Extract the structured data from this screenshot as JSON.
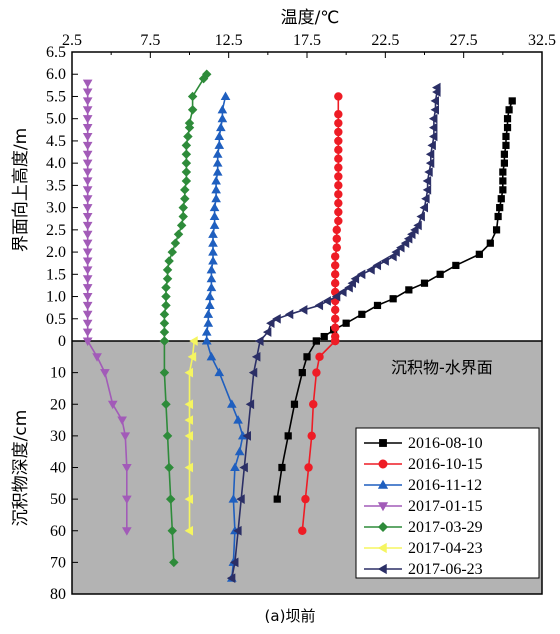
{
  "chart_data": {
    "type": "line",
    "xlabel": "温度/℃",
    "ylabel_upper": "界面向上高度/m",
    "ylabel_lower": "沉积物深度/cm",
    "annotation": "沉积物-水界面",
    "caption": "(a)坝前",
    "x_axis": {
      "position": "top",
      "range": [
        2.5,
        32.5
      ],
      "ticks": [
        "2.5",
        "7.5",
        "12.5",
        "17.5",
        "22.5",
        "27.5",
        "32.5"
      ]
    },
    "upper_axis": {
      "unit": "m",
      "range": [
        0,
        6.5
      ],
      "ticks": [
        "0",
        "0.5",
        "1.0",
        "1.5",
        "2.0",
        "2.5",
        "3.0",
        "3.5",
        "4.0",
        "4.5",
        "5.0",
        "5.5",
        "6.0",
        "6.5"
      ]
    },
    "lower_axis": {
      "unit": "cm",
      "range": [
        0,
        80
      ],
      "ticks": [
        "10",
        "20",
        "30",
        "40",
        "50",
        "60",
        "70",
        "80"
      ]
    },
    "legend_position": "bottom-right",
    "series": [
      {
        "name": "2016-08-10",
        "color": "#000000",
        "marker": "square",
        "water": [
          [
            18.1,
            0
          ],
          [
            18.6,
            0.1
          ],
          [
            19.2,
            0.25
          ],
          [
            20.0,
            0.4
          ],
          [
            21.0,
            0.6
          ],
          [
            22.0,
            0.8
          ],
          [
            23.0,
            0.95
          ],
          [
            24.0,
            1.15
          ],
          [
            25.0,
            1.3
          ],
          [
            26.0,
            1.5
          ],
          [
            27.0,
            1.7
          ],
          [
            28.5,
            1.95
          ],
          [
            29.2,
            2.2
          ],
          [
            29.6,
            2.5
          ],
          [
            29.7,
            2.8
          ],
          [
            29.8,
            3.0
          ],
          [
            29.9,
            3.2
          ],
          [
            30.0,
            3.4
          ],
          [
            30.0,
            3.6
          ],
          [
            30.0,
            3.8
          ],
          [
            30.1,
            4.0
          ],
          [
            30.1,
            4.2
          ],
          [
            30.2,
            4.4
          ],
          [
            30.2,
            4.6
          ],
          [
            30.3,
            4.8
          ],
          [
            30.3,
            5.0
          ],
          [
            30.4,
            5.2
          ],
          [
            30.6,
            5.4
          ]
        ],
        "sediment": [
          [
            18.1,
            0
          ],
          [
            17.5,
            5
          ],
          [
            17.2,
            10
          ],
          [
            16.7,
            20
          ],
          [
            16.3,
            30
          ],
          [
            15.9,
            40
          ],
          [
            15.6,
            50
          ]
        ]
      },
      {
        "name": "2016-10-15",
        "color": "#ee1c25",
        "marker": "circle",
        "water": [
          [
            19.3,
            0
          ],
          [
            19.3,
            0.1
          ],
          [
            19.3,
            0.3
          ],
          [
            19.3,
            0.5
          ],
          [
            19.3,
            0.7
          ],
          [
            19.3,
            0.9
          ],
          [
            19.3,
            1.1
          ],
          [
            19.3,
            1.3
          ],
          [
            19.3,
            1.5
          ],
          [
            19.3,
            1.7
          ],
          [
            19.3,
            1.9
          ],
          [
            19.4,
            2.1
          ],
          [
            19.4,
            2.3
          ],
          [
            19.4,
            2.5
          ],
          [
            19.5,
            2.7
          ],
          [
            19.5,
            2.9
          ],
          [
            19.5,
            3.1
          ],
          [
            19.5,
            3.3
          ],
          [
            19.5,
            3.5
          ],
          [
            19.5,
            3.7
          ],
          [
            19.5,
            3.9
          ],
          [
            19.5,
            4.1
          ],
          [
            19.5,
            4.3
          ],
          [
            19.5,
            4.5
          ],
          [
            19.5,
            4.7
          ],
          [
            19.5,
            4.9
          ],
          [
            19.5,
            5.1
          ],
          [
            19.5,
            5.5
          ]
        ],
        "sediment": [
          [
            19.3,
            0
          ],
          [
            18.3,
            5
          ],
          [
            18.1,
            10
          ],
          [
            17.9,
            20
          ],
          [
            17.8,
            30
          ],
          [
            17.6,
            40
          ],
          [
            17.4,
            50
          ],
          [
            17.2,
            60
          ]
        ]
      },
      {
        "name": "2016-11-12",
        "color": "#1f5fbf",
        "marker": "triangle-up",
        "water": [
          [
            11.1,
            0
          ],
          [
            11.1,
            0.2
          ],
          [
            11.2,
            0.4
          ],
          [
            11.2,
            0.6
          ],
          [
            11.3,
            0.8
          ],
          [
            11.3,
            1.0
          ],
          [
            11.4,
            1.2
          ],
          [
            11.4,
            1.4
          ],
          [
            11.4,
            1.6
          ],
          [
            11.5,
            1.8
          ],
          [
            11.5,
            2.0
          ],
          [
            11.5,
            2.2
          ],
          [
            11.5,
            2.4
          ],
          [
            11.6,
            2.6
          ],
          [
            11.6,
            2.8
          ],
          [
            11.6,
            3.0
          ],
          [
            11.7,
            3.2
          ],
          [
            11.7,
            3.4
          ],
          [
            11.7,
            3.6
          ],
          [
            11.8,
            3.8
          ],
          [
            11.8,
            4.0
          ],
          [
            11.8,
            4.2
          ],
          [
            11.9,
            4.4
          ],
          [
            11.9,
            4.6
          ],
          [
            12.0,
            4.8
          ],
          [
            12.1,
            5.0
          ],
          [
            12.1,
            5.2
          ],
          [
            12.3,
            5.5
          ]
        ],
        "sediment": [
          [
            11.1,
            0
          ],
          [
            11.4,
            5
          ],
          [
            11.9,
            10
          ],
          [
            12.7,
            20
          ],
          [
            13.1,
            25
          ],
          [
            13.4,
            30
          ],
          [
            13.2,
            35
          ],
          [
            12.9,
            40
          ],
          [
            12.8,
            50
          ],
          [
            12.9,
            60
          ],
          [
            12.8,
            70
          ],
          [
            12.7,
            75
          ]
        ]
      },
      {
        "name": "2017-01-15",
        "color": "#a25bb8",
        "marker": "triangle-down",
        "water": [
          [
            3.5,
            0
          ],
          [
            3.5,
            0.2
          ],
          [
            3.5,
            0.4
          ],
          [
            3.5,
            0.6
          ],
          [
            3.5,
            0.8
          ],
          [
            3.5,
            1.0
          ],
          [
            3.5,
            1.2
          ],
          [
            3.5,
            1.4
          ],
          [
            3.5,
            1.6
          ],
          [
            3.5,
            1.8
          ],
          [
            3.5,
            2.0
          ],
          [
            3.5,
            2.2
          ],
          [
            3.5,
            2.4
          ],
          [
            3.5,
            2.6
          ],
          [
            3.5,
            2.8
          ],
          [
            3.5,
            3.0
          ],
          [
            3.5,
            3.2
          ],
          [
            3.5,
            3.4
          ],
          [
            3.5,
            3.6
          ],
          [
            3.5,
            3.8
          ],
          [
            3.5,
            4.0
          ],
          [
            3.5,
            4.2
          ],
          [
            3.5,
            4.4
          ],
          [
            3.5,
            4.6
          ],
          [
            3.5,
            4.8
          ],
          [
            3.5,
            5.0
          ],
          [
            3.5,
            5.2
          ],
          [
            3.5,
            5.4
          ],
          [
            3.5,
            5.6
          ],
          [
            3.5,
            5.8
          ]
        ],
        "sediment": [
          [
            3.5,
            0
          ],
          [
            4.1,
            5
          ],
          [
            4.6,
            10
          ],
          [
            5.1,
            20
          ],
          [
            5.7,
            25
          ],
          [
            5.9,
            30
          ],
          [
            6.0,
            40
          ],
          [
            6.0,
            50
          ],
          [
            6.0,
            60
          ]
        ]
      },
      {
        "name": "2017-03-29",
        "color": "#2e8b3a",
        "marker": "diamond",
        "water": [
          [
            8.4,
            0
          ],
          [
            8.4,
            0.2
          ],
          [
            8.4,
            0.4
          ],
          [
            8.4,
            0.6
          ],
          [
            8.5,
            0.8
          ],
          [
            8.5,
            1.0
          ],
          [
            8.5,
            1.2
          ],
          [
            8.6,
            1.4
          ],
          [
            8.6,
            1.6
          ],
          [
            8.7,
            1.8
          ],
          [
            8.9,
            2.0
          ],
          [
            9.1,
            2.2
          ],
          [
            9.3,
            2.4
          ],
          [
            9.5,
            2.6
          ],
          [
            9.6,
            2.8
          ],
          [
            9.6,
            3.0
          ],
          [
            9.7,
            3.2
          ],
          [
            9.7,
            3.4
          ],
          [
            9.8,
            3.6
          ],
          [
            9.8,
            3.8
          ],
          [
            9.8,
            4.0
          ],
          [
            9.8,
            4.2
          ],
          [
            9.8,
            4.4
          ],
          [
            9.9,
            4.6
          ],
          [
            10.0,
            4.8
          ],
          [
            10.0,
            4.9
          ],
          [
            10.2,
            5.2
          ],
          [
            10.2,
            5.5
          ],
          [
            10.9,
            5.9
          ],
          [
            11.1,
            6.0
          ]
        ],
        "sediment": [
          [
            8.4,
            0
          ],
          [
            8.4,
            10
          ],
          [
            8.5,
            20
          ],
          [
            8.6,
            30
          ],
          [
            8.7,
            40
          ],
          [
            8.8,
            50
          ],
          [
            8.9,
            60
          ],
          [
            9.0,
            70
          ]
        ]
      },
      {
        "name": "2017-04-23",
        "color": "#f5f560",
        "marker": "triangle-left",
        "water": [],
        "sediment": [
          [
            10.3,
            0
          ],
          [
            10.2,
            5
          ],
          [
            10.0,
            10
          ],
          [
            10.0,
            20
          ],
          [
            10.0,
            25
          ],
          [
            10.0,
            30
          ],
          [
            10.0,
            40
          ],
          [
            10.0,
            50
          ],
          [
            10.0,
            60
          ]
        ]
      },
      {
        "name": "2017-06-23",
        "color": "#2b2f66",
        "marker": "triangle-left",
        "water": [
          [
            14.5,
            0
          ],
          [
            15.0,
            0.2
          ],
          [
            15.2,
            0.4
          ],
          [
            15.6,
            0.5
          ],
          [
            16.4,
            0.6
          ],
          [
            17.3,
            0.7
          ],
          [
            18.3,
            0.8
          ],
          [
            18.8,
            0.9
          ],
          [
            19.4,
            1.0
          ],
          [
            19.8,
            1.1
          ],
          [
            20.2,
            1.2
          ],
          [
            20.4,
            1.3
          ],
          [
            20.6,
            1.4
          ],
          [
            21.0,
            1.5
          ],
          [
            21.6,
            1.6
          ],
          [
            22.0,
            1.7
          ],
          [
            22.5,
            1.8
          ],
          [
            23.0,
            1.9
          ],
          [
            23.2,
            2.0
          ],
          [
            23.5,
            2.1
          ],
          [
            23.8,
            2.2
          ],
          [
            24.0,
            2.3
          ],
          [
            24.2,
            2.4
          ],
          [
            24.4,
            2.5
          ],
          [
            24.6,
            2.6
          ],
          [
            24.8,
            2.8
          ],
          [
            25.0,
            3.0
          ],
          [
            25.1,
            3.2
          ],
          [
            25.2,
            3.4
          ],
          [
            25.2,
            3.6
          ],
          [
            25.3,
            3.8
          ],
          [
            25.4,
            4.0
          ],
          [
            25.4,
            4.2
          ],
          [
            25.5,
            4.4
          ],
          [
            25.6,
            4.6
          ],
          [
            25.6,
            4.8
          ],
          [
            25.6,
            5.0
          ],
          [
            25.7,
            5.2
          ],
          [
            25.7,
            5.4
          ],
          [
            25.8,
            5.6
          ],
          [
            25.8,
            5.7
          ]
        ],
        "sediment": [
          [
            14.5,
            0
          ],
          [
            14.3,
            5
          ],
          [
            14.1,
            10
          ],
          [
            13.9,
            20
          ],
          [
            13.7,
            30
          ],
          [
            13.5,
            40
          ],
          [
            13.3,
            50
          ],
          [
            13.1,
            60
          ],
          [
            12.9,
            70
          ],
          [
            12.7,
            75
          ]
        ]
      }
    ]
  }
}
